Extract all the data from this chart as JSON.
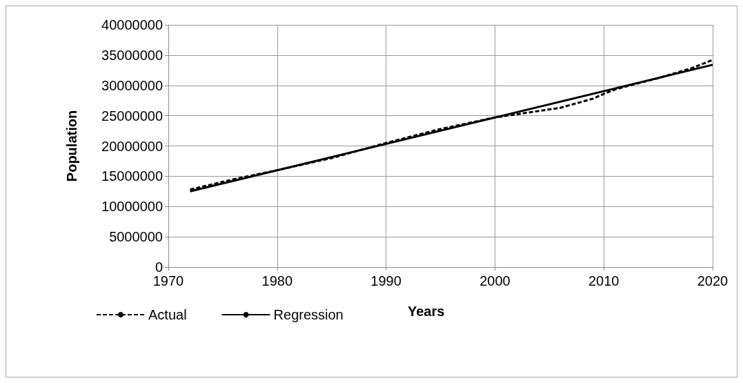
{
  "chart_data": {
    "type": "line",
    "xlabel": "Years",
    "ylabel": "Population",
    "xlim": [
      1970,
      2020
    ],
    "xticks": [
      1970,
      1980,
      1990,
      2000,
      2010,
      2020
    ],
    "ylim": [
      0,
      40000000
    ],
    "yticks": [
      0,
      5000000,
      10000000,
      15000000,
      20000000,
      25000000,
      30000000,
      35000000,
      40000000
    ],
    "grid": true,
    "legend": "bottom left",
    "marker": "none",
    "series": [
      {
        "name": "Actual",
        "color": "#000000",
        "line_style": "dashed",
        "x": [
          1972,
          1976,
          1980,
          1985,
          1990,
          1995,
          2000,
          2003,
          2006,
          2008,
          2009,
          2010,
          2011,
          2012,
          2015,
          2018,
          2020
        ],
        "values": [
          12800000,
          14500000,
          16000000,
          18000000,
          20500000,
          22800000,
          24700000,
          25500000,
          26300000,
          27300000,
          27800000,
          28600000,
          29300000,
          29800000,
          31200000,
          32800000,
          34200000
        ]
      },
      {
        "name": "Regression",
        "color": "#000000",
        "line_style": "solid",
        "x": [
          1972,
          2020
        ],
        "values": [
          12500000,
          33400000
        ]
      }
    ]
  }
}
